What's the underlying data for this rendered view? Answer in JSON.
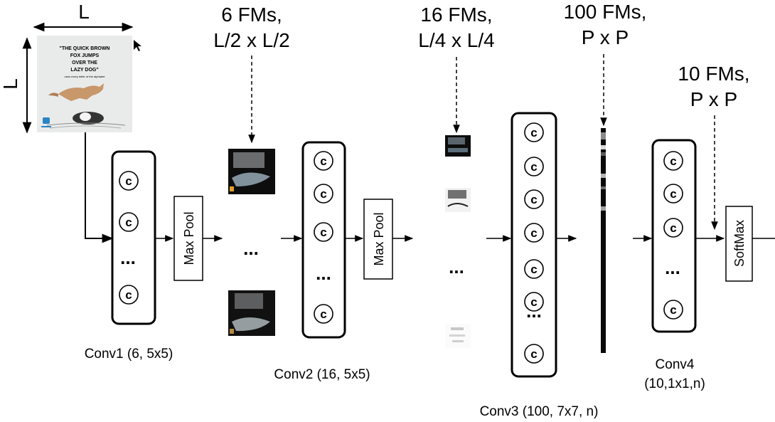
{
  "input": {
    "dim_top": "L",
    "dim_side": "L",
    "poster": {
      "line1": "\"THE QUICK BROWN",
      "line2": "FOX JUMPS",
      "line3": "OVER THE",
      "line4": "LAZY DOG\"",
      "subtitle": "uses every letter of the alphabet"
    }
  },
  "fm_labels": {
    "fm1_line1": "6 FMs,",
    "fm1_line2": "L/2 x L/2",
    "fm2_line1": "16 FMs,",
    "fm2_line2": "L/4 x L/4",
    "fm3_line1": "100 FMs,",
    "fm3_line2": "P x P",
    "fm4_line1": "10 FMs,",
    "fm4_line2": "P x P"
  },
  "layers": {
    "conv1": {
      "label": "Conv1 (6, 5x5)"
    },
    "conv2": {
      "label": "Conv2 (16, 5x5)"
    },
    "conv3": {
      "label": "Conv3 (100, 7x7, n)"
    },
    "conv4": {
      "line1": "Conv4",
      "line2": "(10,1x1,n)"
    }
  },
  "blocks": {
    "maxpool1": "Max Pool",
    "maxpool2": "Max Pool",
    "softmax": "SoftMax"
  },
  "symbols": {
    "conv_unit": "c",
    "ellipsis": "..."
  }
}
